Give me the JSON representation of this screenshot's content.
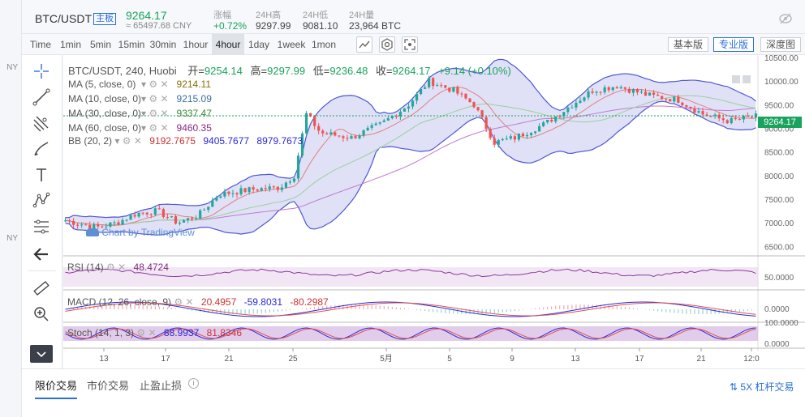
{
  "header": {
    "pair": "BTC/USDT",
    "tag": "主板",
    "price": "9264.17",
    "cny": "≈ 65497.68 CNY",
    "stats": [
      {
        "label": "涨幅",
        "value": "+0.72%"
      },
      {
        "label": "24H高",
        "value": "9297.99"
      },
      {
        "label": "24H低",
        "value": "9081.10"
      },
      {
        "label": "24H量",
        "value": "23,964 BTC"
      }
    ]
  },
  "toolbar": {
    "timeframes": [
      "Time",
      "1min",
      "5min",
      "15min",
      "30min",
      "1hour",
      "4hour",
      "1day",
      "1week",
      "1mon"
    ],
    "active_timeframe": "4hour",
    "views": [
      "基本版",
      "专业版",
      "深度图"
    ],
    "active_view": "专业版"
  },
  "sidebar": {
    "tools": [
      "crosshair-icon",
      "trendline-icon",
      "fib-icon",
      "brush-icon",
      "text-icon",
      "pattern-icon",
      "prediction-icon",
      "back-arrow-icon",
      "ruler-icon",
      "zoom-icon",
      "more-icon"
    ]
  },
  "legend": {
    "title": "BTC/USDT, 240, Huobi",
    "open_label": "开=",
    "open": "9254.14",
    "high_label": "高=",
    "high": "9297.99",
    "low_label": "低=",
    "low": "9236.48",
    "close_label": "收=",
    "close": "9264.17",
    "change": "+9.14 (+0.10%)",
    "ma": [
      {
        "label": "MA (5, close, 0)",
        "value": "9214.11",
        "color": "#8a6d00"
      },
      {
        "label": "MA (10, close, 0)",
        "value": "9215.09",
        "color": "#3b6ea5"
      },
      {
        "label": "MA (30, close, 0)",
        "value": "9337.47",
        "color": "#3a8a3a"
      },
      {
        "label": "MA (60, close, 0)",
        "value": "9460.35",
        "color": "#8a2a8a"
      }
    ],
    "bb": {
      "label": "BB (20, 2)",
      "v1": "9192.7675",
      "v2": "9405.7677",
      "v3": "8979.7673"
    }
  },
  "watermark": "Chart by TradingView",
  "indicators": {
    "rsi": {
      "label": "RSI (14)",
      "value": "48.4724",
      "axis": "50.0000"
    },
    "macd": {
      "label": "MACD (12, 26, close, 9)",
      "v1": "20.4957",
      "v2": "-59.8031",
      "v3": "-80.2987",
      "axis": "0.0000"
    },
    "stoch": {
      "label": "Stoch (14, 1, 3)",
      "v1": "88.9937",
      "v2": "81.8346",
      "axis_top": "100.0000",
      "axis_bottom": "0.0000"
    }
  },
  "chart_data": {
    "type": "candlestick",
    "price_axis": [
      "10500.00",
      "10000.00",
      "9500.00",
      "9000.00",
      "8500.00",
      "8000.00",
      "7500.00",
      "7000.00",
      "6500.00"
    ],
    "last_price": "9264.17",
    "ylim": [
      6300,
      10550
    ],
    "x_ticks": [
      "13",
      "17",
      "21",
      "25",
      "5月",
      "5",
      "9",
      "13",
      "17",
      "21",
      "12:0"
    ],
    "colors": {
      "up": "#26a69a",
      "down": "#ef5350",
      "bb_fill": "#c7c9f0",
      "bb_line": "#4f57d6"
    }
  },
  "bottom": {
    "tabs": [
      "限价交易",
      "市价交易",
      "止盈止损"
    ],
    "active_tab": "限价交易",
    "leverage": "5X 杠杆交易"
  },
  "left_edge": {
    "label": "NY",
    "label2": "NY"
  }
}
